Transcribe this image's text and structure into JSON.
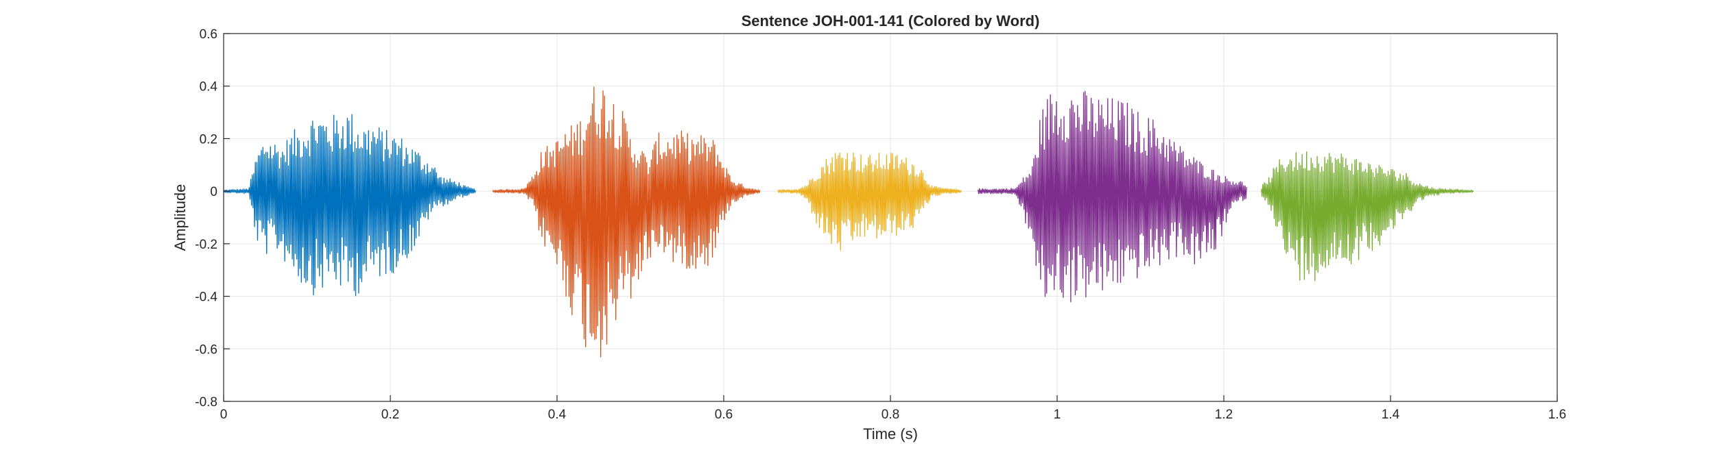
{
  "chart_data": {
    "type": "line",
    "title": "Sentence JOH-001-141 (Colored by Word)",
    "xlabel": "Time (s)",
    "ylabel": "Amplitude",
    "xlim": [
      0,
      1.6
    ],
    "ylim": [
      -0.8,
      0.6
    ],
    "xticks": [
      0,
      0.2,
      0.4,
      0.6,
      0.8,
      1,
      1.2,
      1.4,
      1.6
    ],
    "xtick_labels": [
      "0",
      "0.2",
      "0.4",
      "0.6",
      "0.8",
      "1",
      "1.2",
      "1.4",
      "1.6"
    ],
    "yticks": [
      -0.8,
      -0.6,
      -0.4,
      -0.2,
      0,
      0.2,
      0.4,
      0.6
    ],
    "ytick_labels": [
      "-0.8",
      "-0.6",
      "-0.4",
      "-0.2",
      "0",
      "0.2",
      "0.4",
      "0.6"
    ],
    "grid": true,
    "series": [
      {
        "color": "#0072BD",
        "x": [
          0.0,
          0.03,
          0.04,
          0.05,
          0.06,
          0.07,
          0.08,
          0.09,
          0.1,
          0.11,
          0.12,
          0.13,
          0.14,
          0.15,
          0.16,
          0.17,
          0.18,
          0.19,
          0.2,
          0.21,
          0.22,
          0.23,
          0.24,
          0.25,
          0.26,
          0.27,
          0.28,
          0.29,
          0.3,
          0.303
        ],
        "upper": [
          0.005,
          0.01,
          0.15,
          0.22,
          0.2,
          0.18,
          0.22,
          0.25,
          0.28,
          0.31,
          0.3,
          0.29,
          0.31,
          0.32,
          0.28,
          0.26,
          0.27,
          0.24,
          0.23,
          0.22,
          0.19,
          0.17,
          0.14,
          0.12,
          0.06,
          0.05,
          0.04,
          0.02,
          0.01,
          0.005
        ],
        "lower": [
          -0.005,
          -0.01,
          -0.2,
          -0.25,
          -0.22,
          -0.26,
          -0.3,
          -0.35,
          -0.38,
          -0.4,
          -0.38,
          -0.36,
          -0.38,
          -0.41,
          -0.4,
          -0.37,
          -0.35,
          -0.33,
          -0.32,
          -0.3,
          -0.26,
          -0.22,
          -0.15,
          -0.08,
          -0.06,
          -0.05,
          -0.03,
          -0.02,
          -0.01,
          -0.005
        ]
      },
      {
        "color": "#D95319",
        "x": [
          0.323,
          0.36,
          0.37,
          0.38,
          0.39,
          0.4,
          0.41,
          0.42,
          0.43,
          0.44,
          0.45,
          0.46,
          0.47,
          0.48,
          0.49,
          0.5,
          0.51,
          0.52,
          0.53,
          0.54,
          0.55,
          0.56,
          0.57,
          0.58,
          0.59,
          0.6,
          0.61,
          0.62,
          0.63,
          0.644
        ],
        "upper": [
          0.005,
          0.01,
          0.06,
          0.15,
          0.18,
          0.2,
          0.24,
          0.26,
          0.3,
          0.4,
          0.43,
          0.42,
          0.36,
          0.3,
          0.2,
          0.18,
          0.12,
          0.22,
          0.23,
          0.24,
          0.23,
          0.22,
          0.22,
          0.21,
          0.2,
          0.12,
          0.05,
          0.03,
          0.015,
          0.005
        ],
        "lower": [
          -0.005,
          -0.01,
          -0.05,
          -0.18,
          -0.25,
          -0.32,
          -0.4,
          -0.5,
          -0.58,
          -0.64,
          -0.66,
          -0.6,
          -0.54,
          -0.48,
          -0.42,
          -0.35,
          -0.28,
          -0.22,
          -0.25,
          -0.28,
          -0.29,
          -0.3,
          -0.3,
          -0.29,
          -0.25,
          -0.12,
          -0.05,
          -0.03,
          -0.015,
          -0.005
        ]
      },
      {
        "color": "#EDB120",
        "x": [
          0.665,
          0.69,
          0.7,
          0.71,
          0.72,
          0.73,
          0.74,
          0.75,
          0.76,
          0.77,
          0.78,
          0.79,
          0.8,
          0.81,
          0.82,
          0.83,
          0.84,
          0.85,
          0.86,
          0.87,
          0.88,
          0.885
        ],
        "upper": [
          0.005,
          0.01,
          0.03,
          0.08,
          0.12,
          0.15,
          0.17,
          0.17,
          0.15,
          0.14,
          0.14,
          0.15,
          0.15,
          0.15,
          0.13,
          0.12,
          0.08,
          0.02,
          0.015,
          0.01,
          0.008,
          0.005
        ],
        "lower": [
          -0.005,
          -0.01,
          -0.04,
          -0.12,
          -0.18,
          -0.22,
          -0.24,
          -0.23,
          -0.2,
          -0.18,
          -0.19,
          -0.19,
          -0.18,
          -0.17,
          -0.16,
          -0.14,
          -0.08,
          -0.02,
          -0.015,
          -0.01,
          -0.008,
          -0.005
        ]
      },
      {
        "color": "#7E2F8E",
        "x": [
          0.905,
          0.93,
          0.95,
          0.97,
          0.98,
          0.99,
          1.0,
          1.01,
          1.02,
          1.03,
          1.04,
          1.05,
          1.06,
          1.07,
          1.08,
          1.09,
          1.1,
          1.11,
          1.12,
          1.13,
          1.14,
          1.15,
          1.16,
          1.17,
          1.18,
          1.19,
          1.2,
          1.21,
          1.22,
          1.228
        ],
        "upper": [
          0.01,
          0.01,
          0.012,
          0.1,
          0.3,
          0.38,
          0.42,
          0.41,
          0.4,
          0.39,
          0.38,
          0.37,
          0.36,
          0.36,
          0.35,
          0.33,
          0.3,
          0.29,
          0.27,
          0.24,
          0.2,
          0.17,
          0.15,
          0.12,
          0.1,
          0.08,
          0.06,
          0.05,
          0.04,
          0.03
        ],
        "lower": [
          -0.01,
          -0.01,
          -0.012,
          -0.2,
          -0.46,
          -0.42,
          -0.4,
          -0.43,
          -0.43,
          -0.42,
          -0.41,
          -0.41,
          -0.4,
          -0.38,
          -0.36,
          -0.35,
          -0.33,
          -0.32,
          -0.3,
          -0.28,
          -0.26,
          -0.24,
          -0.28,
          -0.3,
          -0.26,
          -0.25,
          -0.15,
          -0.07,
          -0.04,
          -0.03
        ]
      },
      {
        "color": "#77AC30",
        "x": [
          1.245,
          1.255,
          1.26,
          1.27,
          1.28,
          1.29,
          1.3,
          1.31,
          1.32,
          1.33,
          1.34,
          1.35,
          1.36,
          1.37,
          1.38,
          1.39,
          1.4,
          1.41,
          1.42,
          1.43,
          1.44,
          1.45,
          1.46,
          1.47,
          1.48,
          1.49,
          1.5
        ],
        "upper": [
          0.02,
          0.06,
          0.09,
          0.14,
          0.15,
          0.15,
          0.16,
          0.16,
          0.16,
          0.15,
          0.15,
          0.14,
          0.13,
          0.12,
          0.11,
          0.1,
          0.09,
          0.08,
          0.07,
          0.04,
          0.025,
          0.015,
          0.01,
          0.01,
          0.008,
          0.006,
          0.004
        ],
        "lower": [
          -0.02,
          -0.06,
          -0.1,
          -0.25,
          -0.32,
          -0.34,
          -0.35,
          -0.34,
          -0.32,
          -0.3,
          -0.29,
          -0.28,
          -0.27,
          -0.26,
          -0.22,
          -0.2,
          -0.17,
          -0.14,
          -0.1,
          -0.05,
          -0.03,
          -0.02,
          -0.012,
          -0.01,
          -0.008,
          -0.006,
          -0.004
        ]
      }
    ]
  }
}
